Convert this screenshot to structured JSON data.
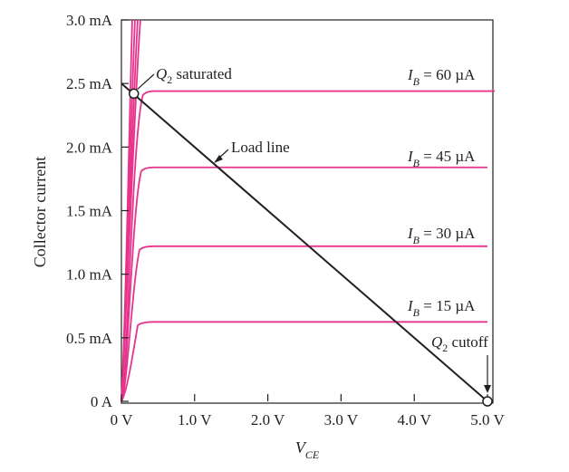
{
  "chart_data": {
    "type": "line",
    "xlabel": {
      "main": "V",
      "sub": "CE"
    },
    "ylabel": "Collector current",
    "xlim": [
      0,
      5.0
    ],
    "ylim": [
      0,
      3.0
    ],
    "x_ticks": [
      {
        "value": 0,
        "label": "0 V"
      },
      {
        "value": 1,
        "label": "1.0 V"
      },
      {
        "value": 2,
        "label": "2.0 V"
      },
      {
        "value": 3,
        "label": "3.0 V"
      },
      {
        "value": 4,
        "label": "4.0 V"
      },
      {
        "value": 5,
        "label": "5.0 V"
      }
    ],
    "y_ticks": [
      {
        "value": 0,
        "label": "0 A"
      },
      {
        "value": 0.5,
        "label": "0.5 mA"
      },
      {
        "value": 1.0,
        "label": "1.0 mA"
      },
      {
        "value": 1.5,
        "label": "1.5 mA"
      },
      {
        "value": 2.0,
        "label": "2.0 mA"
      },
      {
        "value": 2.5,
        "label": "2.5 mA"
      },
      {
        "value": 3.0,
        "label": "3.0 mA"
      }
    ],
    "series": [
      {
        "name": "I_B = 15 µA",
        "label_main": "I",
        "label_sub": "B",
        "label_rest": " = 15 µA",
        "ic": 0.625,
        "xend": 5.0
      },
      {
        "name": "I_B = 30 µA",
        "label_main": "I",
        "label_sub": "B",
        "label_rest": " = 30 µA",
        "ic": 1.22,
        "xend": 5.0
      },
      {
        "name": "I_B = 45 µA",
        "label_main": "I",
        "label_sub": "B",
        "label_rest": " = 45 µA",
        "ic": 1.84,
        "xend": 5.0
      },
      {
        "name": "I_B = 60 µA",
        "label_main": "I",
        "label_sub": "B",
        "label_rest": " = 60 µA",
        "ic": 2.44,
        "xend": 5.1
      }
    ],
    "load_line": {
      "label": "Load line",
      "points": [
        [
          0,
          2.5
        ],
        [
          5.0,
          0
        ]
      ]
    },
    "annotations": [
      {
        "id": "saturated",
        "main": "Q",
        "sub": "2",
        "rest": " saturated",
        "point": [
          0.17,
          2.42
        ]
      },
      {
        "id": "cutoff",
        "main": "Q",
        "sub": "2",
        "rest": " cutoff",
        "point": [
          5.0,
          0
        ]
      }
    ],
    "colors": {
      "curve": "#e8338c",
      "load_line": "#231f20",
      "axis": "#231f20"
    },
    "grid": false
  }
}
